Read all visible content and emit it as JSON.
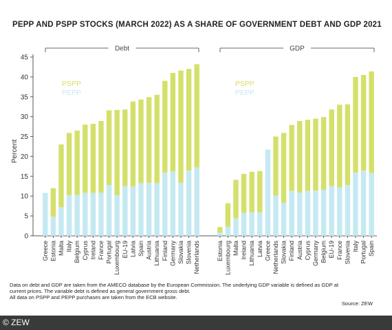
{
  "title": "PEPP AND PSPP STOCKS (MARCH 2022) AS A SHARE OF GOVERNMENT DEBT AND GDP 2021",
  "notes": [
    "Data on debt and GDP are taken from the AMECO database by the European Commission. The underlying GDP variable is defined as GDP at",
    "current prices. The variable debt is defined as general government gross debt.",
    "All data on PSPP and PEPP purchases are taken from the ECB website."
  ],
  "source": "Source: ZEW",
  "footer": "© ZEW",
  "colors": {
    "pspp": "#d4e06a",
    "pepp": "#c4e9f2",
    "axis": "#555555"
  },
  "chart_data": {
    "type": "bar",
    "stacked": true,
    "ylabel": "Percent",
    "ylim": [
      0,
      45
    ],
    "yticks": [
      0,
      5,
      10,
      15,
      20,
      25,
      30,
      35,
      40,
      45
    ],
    "grid": false,
    "legend": [
      "PSPP",
      "PEPP"
    ],
    "legend_placement": "top-left of each panel",
    "panels": [
      {
        "name": "Debt",
        "categories": [
          "Greece",
          "Estonia",
          "Malta",
          "Italy",
          "Belgium",
          "Cyprus",
          "Ireland",
          "France",
          "Portugal",
          "Luxembourg",
          "EU-19",
          "Latvia",
          "Spain",
          "Austria",
          "Lithuania",
          "Finland",
          "Germany",
          "Slovakia",
          "Slovenia",
          "Netherlands"
        ],
        "series": [
          {
            "name": "PEPP",
            "values": [
              10.8,
              4.8,
              7.2,
              10.2,
              10.3,
              10.8,
              10.8,
              10.8,
              12.8,
              10.2,
              12.5,
              12.4,
              13.2,
              13.4,
              13.2,
              15.9,
              16.2,
              13.4,
              16.4,
              17.2
            ]
          },
          {
            "name": "PSPP",
            "values": [
              0,
              7.2,
              15.8,
              15.7,
              16.2,
              17.2,
              17.4,
              18.1,
              18.8,
              21.5,
              19.3,
              21.4,
              21.1,
              21.5,
              22.3,
              23.1,
              24.8,
              28.2,
              25.6,
              26.0
            ]
          }
        ]
      },
      {
        "name": "GDP",
        "categories": [
          "Estonia",
          "Luxembourg",
          "Malta",
          "Ireland",
          "Lithuania",
          "Latvia",
          "Greece",
          "Netherlands",
          "Slovakia",
          "Finland",
          "Austria",
          "Cyprus",
          "Germany",
          "Belgium",
          "EU-19",
          "France",
          "Slovenia",
          "Italy",
          "Portugal",
          "Spain"
        ],
        "series": [
          {
            "name": "PEPP",
            "values": [
              0.8,
              2.3,
              4.4,
              5.8,
              5.9,
              5.9,
              21.7,
              10.1,
              8.3,
              11.3,
              10.9,
              11.3,
              11.4,
              11.6,
              12.5,
              12.2,
              12.8,
              15.9,
              16.4,
              15.8
            ]
          },
          {
            "name": "PSPP",
            "values": [
              1.4,
              5.9,
              9.7,
              9.8,
              10.2,
              10.4,
              0,
              14.9,
              17.6,
              16.6,
              18.0,
              17.9,
              18.1,
              18.3,
              19.3,
              20.8,
              20.3,
              24.1,
              24.1,
              25.6
            ]
          }
        ]
      }
    ]
  }
}
